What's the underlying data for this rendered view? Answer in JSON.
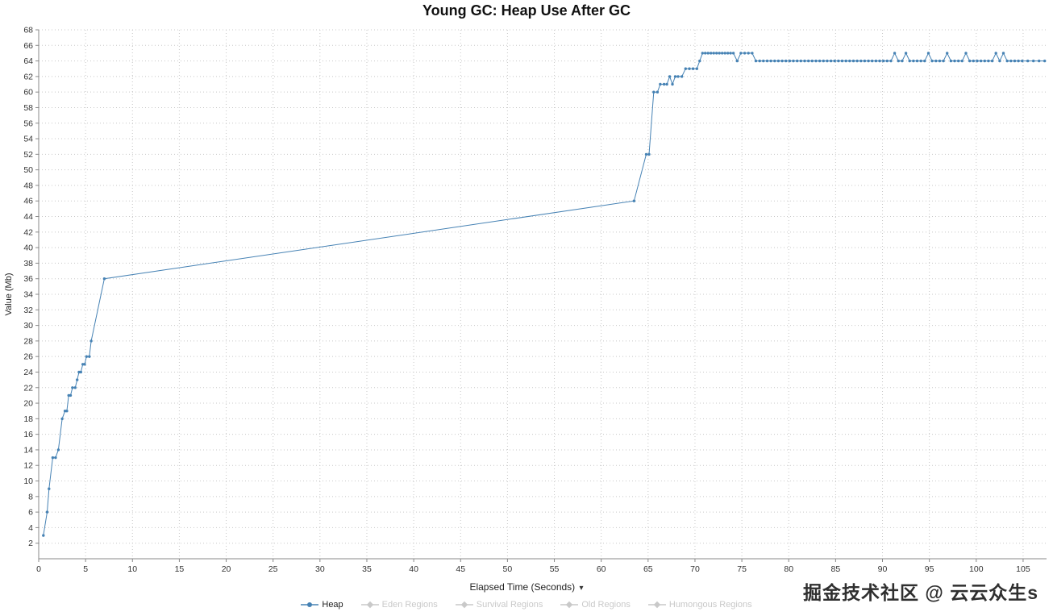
{
  "title": "Young GC: Heap Use After GC",
  "watermark": "掘金技术社区 @ 云云众生s",
  "xaxis": {
    "label": "Elapsed Time (Seconds)",
    "caret": "▾"
  },
  "legend": {
    "items": [
      {
        "label": "Heap",
        "active": true,
        "color": "#4682b4",
        "text_color": "#222222",
        "marker": "circle"
      },
      {
        "label": "Eden Regions",
        "active": false,
        "color": "#c9c9c9",
        "text_color": "#c9c9c9",
        "marker": "diamond"
      },
      {
        "label": "Survival Regions",
        "active": false,
        "color": "#c9c9c9",
        "text_color": "#c9c9c9",
        "marker": "diamond"
      },
      {
        "label": "Old Regions",
        "active": false,
        "color": "#c9c9c9",
        "text_color": "#c9c9c9",
        "marker": "diamond"
      },
      {
        "label": "Humongous Regions",
        "active": false,
        "color": "#c9c9c9",
        "text_color": "#c9c9c9",
        "marker": "diamond"
      }
    ]
  },
  "chart_data": {
    "type": "line",
    "title": "Young GC: Heap Use After GC",
    "xlabel": "Elapsed Time (Seconds)",
    "ylabel": "Value (Mb)",
    "xlim": [
      0,
      107.5
    ],
    "ylim": [
      0,
      68
    ],
    "xticks": [
      0,
      5,
      10,
      15,
      20,
      25,
      30,
      35,
      40,
      45,
      50,
      55,
      60,
      65,
      70,
      75,
      80,
      85,
      90,
      95,
      100,
      105
    ],
    "yticks": [
      2,
      4,
      6,
      8,
      10,
      12,
      14,
      16,
      18,
      20,
      22,
      24,
      26,
      28,
      30,
      32,
      34,
      36,
      38,
      40,
      42,
      44,
      46,
      48,
      50,
      52,
      54,
      56,
      58,
      60,
      62,
      64,
      66,
      68
    ],
    "grid": true,
    "grid_color": "#c8c8c8",
    "axis_color": "#888888",
    "legend_position": "bottom",
    "series": [
      {
        "name": "Heap",
        "color": "#4682b4",
        "points": [
          [
            0.5,
            3
          ],
          [
            0.9,
            6
          ],
          [
            1.1,
            9
          ],
          [
            1.5,
            13
          ],
          [
            1.8,
            13
          ],
          [
            2.1,
            14
          ],
          [
            2.5,
            18
          ],
          [
            2.8,
            19
          ],
          [
            3.0,
            19
          ],
          [
            3.2,
            21
          ],
          [
            3.4,
            21
          ],
          [
            3.6,
            22
          ],
          [
            3.9,
            22
          ],
          [
            4.1,
            23
          ],
          [
            4.3,
            24
          ],
          [
            4.5,
            24
          ],
          [
            4.7,
            25
          ],
          [
            4.9,
            25
          ],
          [
            5.1,
            26
          ],
          [
            5.4,
            26
          ],
          [
            5.6,
            28
          ],
          [
            7.0,
            36
          ],
          [
            63.5,
            46
          ],
          [
            64.8,
            52
          ],
          [
            65.1,
            52
          ],
          [
            65.6,
            60
          ],
          [
            66.0,
            60
          ],
          [
            66.3,
            61
          ],
          [
            66.7,
            61
          ],
          [
            67.0,
            61
          ],
          [
            67.3,
            62
          ],
          [
            67.6,
            61
          ],
          [
            67.9,
            62
          ],
          [
            68.2,
            62
          ],
          [
            68.6,
            62
          ],
          [
            69.0,
            63
          ],
          [
            69.4,
            63
          ],
          [
            69.8,
            63
          ],
          [
            70.2,
            63
          ],
          [
            70.5,
            64
          ],
          [
            70.8,
            65
          ],
          [
            71.1,
            65
          ],
          [
            71.4,
            65
          ],
          [
            71.7,
            65
          ],
          [
            72.0,
            65
          ],
          [
            72.3,
            65
          ],
          [
            72.6,
            65
          ],
          [
            72.9,
            65
          ],
          [
            73.2,
            65
          ],
          [
            73.5,
            65
          ],
          [
            73.8,
            65
          ],
          [
            74.1,
            65
          ],
          [
            74.5,
            64
          ],
          [
            74.9,
            65
          ],
          [
            75.3,
            65
          ],
          [
            75.7,
            65
          ],
          [
            76.1,
            65
          ],
          [
            76.5,
            64
          ],
          [
            76.9,
            64
          ],
          [
            77.3,
            64
          ],
          [
            77.7,
            64
          ],
          [
            78.1,
            64
          ],
          [
            78.5,
            64
          ],
          [
            78.9,
            64
          ],
          [
            79.3,
            64
          ],
          [
            79.7,
            64
          ],
          [
            80.1,
            64
          ],
          [
            80.5,
            64
          ],
          [
            80.9,
            64
          ],
          [
            81.3,
            64
          ],
          [
            81.7,
            64
          ],
          [
            82.1,
            64
          ],
          [
            82.5,
            64
          ],
          [
            82.9,
            64
          ],
          [
            83.3,
            64
          ],
          [
            83.7,
            64
          ],
          [
            84.1,
            64
          ],
          [
            84.5,
            64
          ],
          [
            84.9,
            64
          ],
          [
            85.3,
            64
          ],
          [
            85.7,
            64
          ],
          [
            86.1,
            64
          ],
          [
            86.5,
            64
          ],
          [
            86.9,
            64
          ],
          [
            87.3,
            64
          ],
          [
            87.7,
            64
          ],
          [
            88.1,
            64
          ],
          [
            88.5,
            64
          ],
          [
            88.9,
            64
          ],
          [
            89.3,
            64
          ],
          [
            89.7,
            64
          ],
          [
            90.1,
            64
          ],
          [
            90.5,
            64
          ],
          [
            90.9,
            64
          ],
          [
            91.3,
            65
          ],
          [
            91.7,
            64
          ],
          [
            92.1,
            64
          ],
          [
            92.5,
            65
          ],
          [
            92.9,
            64
          ],
          [
            93.3,
            64
          ],
          [
            93.7,
            64
          ],
          [
            94.1,
            64
          ],
          [
            94.5,
            64
          ],
          [
            94.9,
            65
          ],
          [
            95.3,
            64
          ],
          [
            95.7,
            64
          ],
          [
            96.1,
            64
          ],
          [
            96.5,
            64
          ],
          [
            96.9,
            65
          ],
          [
            97.3,
            64
          ],
          [
            97.7,
            64
          ],
          [
            98.1,
            64
          ],
          [
            98.5,
            64
          ],
          [
            98.9,
            65
          ],
          [
            99.3,
            64
          ],
          [
            99.7,
            64
          ],
          [
            100.1,
            64
          ],
          [
            100.5,
            64
          ],
          [
            100.9,
            64
          ],
          [
            101.3,
            64
          ],
          [
            101.7,
            64
          ],
          [
            102.1,
            65
          ],
          [
            102.5,
            64
          ],
          [
            102.9,
            65
          ],
          [
            103.3,
            64
          ],
          [
            103.7,
            64
          ],
          [
            104.1,
            64
          ],
          [
            104.5,
            64
          ],
          [
            104.9,
            64
          ],
          [
            105.5,
            64
          ],
          [
            106.1,
            64
          ],
          [
            106.7,
            64
          ],
          [
            107.3,
            64
          ]
        ]
      }
    ]
  }
}
